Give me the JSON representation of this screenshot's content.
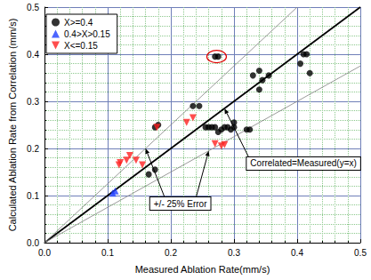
{
  "chart_data": {
    "type": "scatter",
    "x_label": "Measured Ablation Rate(mm/s)",
    "y_label": "Calculated Ablation Rate from Correlation (mm/s)",
    "xlim": [
      0,
      0.5
    ],
    "xticks": [
      {
        "value": 0,
        "label": "0.0"
      },
      0.1,
      0.2,
      0.3,
      0.4,
      0.5
    ],
    "ylim": [
      0,
      0.5
    ],
    "yticks": [
      {
        "value": 0,
        "label": "0.0"
      },
      0.1,
      0.2,
      0.3,
      0.4,
      0.5
    ],
    "grid": true,
    "legend": "upper left",
    "annotations": [
      "Correlated=Measured(y=x)",
      "+/- 25% Error"
    ],
    "series": [
      {
        "name": "X>=0.4",
        "type": "scatter",
        "marker": "circle",
        "color": "#000000",
        "x": [
          0.27,
          0.275,
          0.165,
          0.175,
          0.175,
          0.18,
          0.235,
          0.245,
          0.255,
          0.26,
          0.265,
          0.27,
          0.275,
          0.28,
          0.285,
          0.29,
          0.295,
          0.3,
          0.3,
          0.32,
          0.325,
          0.33,
          0.34,
          0.345,
          0.34,
          0.355,
          0.405,
          0.41,
          0.415,
          0.42
        ],
        "values": [
          0.395,
          0.395,
          0.145,
          0.155,
          0.245,
          0.25,
          0.29,
          0.29,
          0.245,
          0.245,
          0.245,
          0.245,
          0.235,
          0.24,
          0.245,
          0.245,
          0.24,
          0.245,
          0.255,
          0.24,
          0.24,
          0.355,
          0.365,
          0.345,
          0.325,
          0.355,
          0.38,
          0.4,
          0.4,
          0.36
        ]
      },
      {
        "name": "0.4>X>0.15",
        "type": "scatter",
        "marker": "triangle",
        "color": "#1f3fff",
        "x": [
          0.108,
          0.112
        ],
        "values": [
          0.105,
          0.11
        ]
      },
      {
        "name": "X<=0.15",
        "type": "scatter",
        "marker": "triangle-down",
        "color": "#ff2020",
        "x": [
          0.118,
          0.12,
          0.13,
          0.135,
          0.145,
          0.155,
          0.178,
          0.225,
          0.235,
          0.27,
          0.28,
          0.285
        ],
        "values": [
          0.165,
          0.17,
          0.175,
          0.185,
          0.175,
          0.165,
          0.245,
          0.255,
          0.265,
          0.21,
          0.205,
          0.208
        ]
      },
      {
        "type": "line",
        "line_style": "solid",
        "color": "#000000",
        "x": [
          0,
          0.5
        ],
        "values": [
          0,
          0.5
        ]
      },
      {
        "type": "line",
        "line_style": "thin",
        "color": "#808080",
        "x": [
          0,
          0.4
        ],
        "values": [
          0,
          0.5
        ]
      },
      {
        "type": "line",
        "line_style": "thin",
        "color": "#808080",
        "x": [
          0,
          0.5
        ],
        "values": [
          0,
          0.375
        ]
      }
    ]
  }
}
